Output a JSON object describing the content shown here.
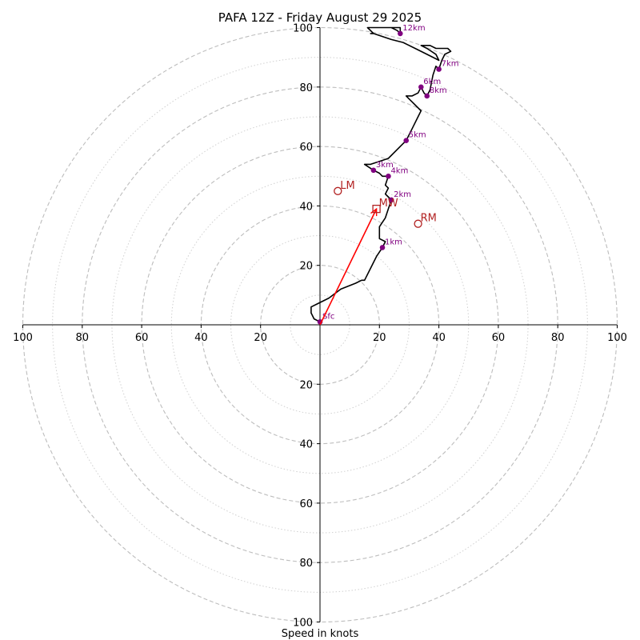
{
  "chart_data": {
    "type": "hodograph",
    "title": "PAFA 12Z - Friday August 29 2025",
    "xlabel": "Speed in knots",
    "axis_range": [
      -100,
      100
    ],
    "ring_radii_dashed": [
      20,
      40,
      60,
      80,
      100
    ],
    "ring_radii_dotted": [
      10,
      30,
      50,
      70,
      90
    ],
    "x_tick_labels": [
      "100",
      "80",
      "60",
      "40",
      "20",
      "20",
      "40",
      "60",
      "80",
      "100"
    ],
    "y_tick_labels": [
      "100",
      "80",
      "60",
      "40",
      "20",
      "20",
      "40",
      "60",
      "80",
      "100"
    ],
    "wind_profile": {
      "color": "#000000",
      "points": [
        [
          0,
          1
        ],
        [
          -2,
          2
        ],
        [
          -3,
          4
        ],
        [
          -3,
          6
        ],
        [
          -1,
          7
        ],
        [
          3,
          9
        ],
        [
          7,
          12
        ],
        [
          12,
          14
        ],
        [
          14,
          15
        ],
        [
          15,
          15
        ],
        [
          17,
          19
        ],
        [
          19,
          23
        ],
        [
          21,
          26
        ],
        [
          22,
          28
        ],
        [
          20,
          29
        ],
        [
          20,
          33
        ],
        [
          22,
          36
        ],
        [
          23,
          39
        ],
        [
          24,
          42
        ],
        [
          22,
          44
        ],
        [
          23,
          46
        ],
        [
          22,
          47
        ],
        [
          23,
          50
        ],
        [
          21,
          50
        ],
        [
          20,
          51
        ],
        [
          18,
          52
        ],
        [
          15,
          54
        ],
        [
          17,
          54
        ],
        [
          20,
          55
        ],
        [
          23,
          56
        ],
        [
          27,
          60
        ],
        [
          29,
          62
        ],
        [
          31,
          66
        ],
        [
          33,
          70
        ],
        [
          34,
          72
        ],
        [
          31,
          75
        ],
        [
          30,
          76
        ],
        [
          29,
          77
        ],
        [
          31,
          77
        ],
        [
          33,
          78
        ],
        [
          34,
          80
        ],
        [
          35,
          78
        ],
        [
          36,
          77
        ],
        [
          37,
          79
        ],
        [
          38,
          84
        ],
        [
          39,
          87
        ],
        [
          40,
          86
        ],
        [
          41,
          89
        ],
        [
          42,
          91
        ],
        [
          44,
          92
        ],
        [
          43,
          93
        ],
        [
          41,
          93
        ],
        [
          39,
          93
        ],
        [
          37,
          94
        ],
        [
          35,
          94
        ],
        [
          34,
          94
        ],
        [
          36,
          93
        ],
        [
          39,
          91
        ],
        [
          40,
          89
        ],
        [
          36,
          91
        ],
        [
          32,
          93
        ],
        [
          28,
          95
        ],
        [
          24,
          96
        ],
        [
          21,
          97
        ],
        [
          18,
          98
        ],
        [
          17,
          98
        ],
        [
          18,
          98
        ],
        [
          17,
          99
        ],
        [
          16,
          100
        ],
        [
          27,
          100
        ],
        [
          27,
          98
        ],
        [
          26,
          99
        ],
        [
          24,
          100
        ]
      ]
    },
    "height_markers": {
      "color": "#800080",
      "points": [
        {
          "label": "Sfc",
          "u": 0,
          "v": 1
        },
        {
          "label": "1km",
          "u": 21,
          "v": 26
        },
        {
          "label": "2km",
          "u": 24,
          "v": 42
        },
        {
          "label": "3km",
          "u": 18,
          "v": 52
        },
        {
          "label": "4km",
          "u": 23,
          "v": 50
        },
        {
          "label": "5km",
          "u": 29,
          "v": 62
        },
        {
          "label": "6km",
          "u": 34,
          "v": 80
        },
        {
          "label": "7km",
          "u": 40,
          "v": 86
        },
        {
          "label": "8km",
          "u": 36,
          "v": 77
        },
        {
          "label": "12km",
          "u": 27,
          "v": 98
        }
      ]
    },
    "storm_motion": {
      "color": "#b22222",
      "vector_color": "#ff0000",
      "points": [
        {
          "label": "LM",
          "marker": "circle",
          "u": 6,
          "v": 45
        },
        {
          "label": "MW",
          "marker": "square",
          "u": 19,
          "v": 39
        },
        {
          "label": "RM",
          "marker": "circle",
          "u": 33,
          "v": 34
        }
      ],
      "vector": {
        "from": [
          0,
          0
        ],
        "to": [
          19,
          39
        ]
      }
    }
  }
}
